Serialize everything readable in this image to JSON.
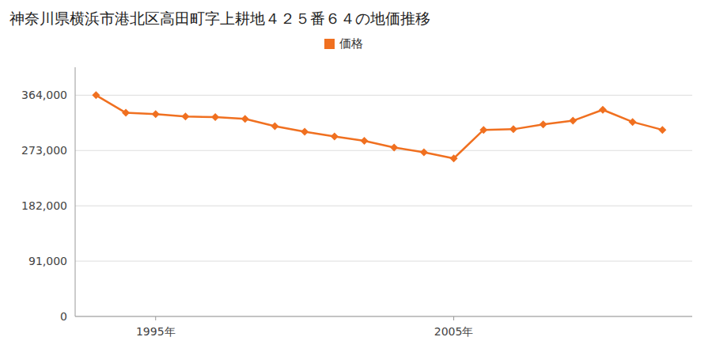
{
  "chart_data": {
    "type": "line",
    "title": "神奈川県横浜市港北区高田町字上耕地４２５番６４の地価推移",
    "x": [
      1993,
      1994,
      1995,
      1996,
      1997,
      1998,
      1999,
      2000,
      2001,
      2002,
      2003,
      2004,
      2005,
      2006,
      2007,
      2008,
      2009,
      2010,
      2011,
      2012
    ],
    "series": [
      {
        "name": "価格",
        "color": "#f07020",
        "marker": "diamond",
        "line_style": "solid",
        "values": [
          364000,
          335000,
          333000,
          329000,
          328000,
          325000,
          313000,
          304000,
          296000,
          289000,
          278000,
          270000,
          260000,
          307000,
          308000,
          316000,
          322000,
          340000,
          320000,
          307000
        ]
      }
    ],
    "xlim": [
      1992.3,
      2013.0
    ],
    "xticks": [
      {
        "value": 1995,
        "label": "1995年"
      },
      {
        "value": 2005,
        "label": "2005年"
      }
    ],
    "ylim": [
      0,
      410000
    ],
    "yticks": [
      0,
      {
        "value": 91000,
        "label": "91,000"
      },
      {
        "value": 182000,
        "label": "182,000"
      },
      {
        "value": 273000,
        "label": "273,000"
      },
      {
        "value": 364000,
        "label": "364,000"
      }
    ],
    "grid": true,
    "legend": "top"
  }
}
